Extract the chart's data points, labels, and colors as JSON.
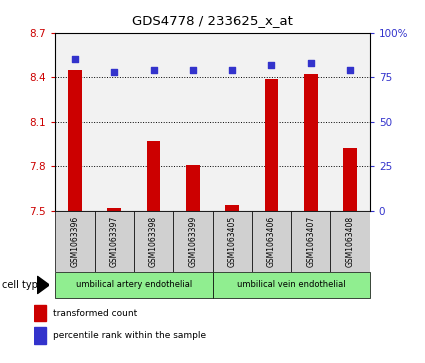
{
  "title": "GDS4778 / 233625_x_at",
  "samples": [
    "GSM1063396",
    "GSM1063397",
    "GSM1063398",
    "GSM1063399",
    "GSM1063405",
    "GSM1063406",
    "GSM1063407",
    "GSM1063408"
  ],
  "bar_values": [
    8.45,
    7.52,
    7.97,
    7.81,
    7.54,
    8.39,
    8.42,
    7.92
  ],
  "scatter_values": [
    85,
    78,
    79,
    79,
    79,
    82,
    83,
    79
  ],
  "ylim_left": [
    7.5,
    8.7
  ],
  "ylim_right": [
    0,
    100
  ],
  "yticks_left": [
    7.5,
    7.8,
    8.1,
    8.4,
    8.7
  ],
  "ytick_labels_left": [
    "7.5",
    "7.8",
    "8.1",
    "8.4",
    "8.7"
  ],
  "yticks_right": [
    0,
    25,
    50,
    75,
    100
  ],
  "ytick_labels_right": [
    "0",
    "25",
    "50",
    "75",
    "100%"
  ],
  "bar_color": "#cc0000",
  "scatter_color": "#3333cc",
  "cell_type_groups": [
    {
      "label": "umbilical artery endothelial",
      "start": 0,
      "end": 3,
      "color": "#90ee90"
    },
    {
      "label": "umbilical vein endothelial",
      "start": 4,
      "end": 7,
      "color": "#90ee90"
    }
  ],
  "legend_bar_label": "transformed count",
  "legend_scatter_label": "percentile rank within the sample",
  "cell_type_label": "cell type",
  "plot_bg_color": "#f2f2f2",
  "bar_width": 0.35
}
